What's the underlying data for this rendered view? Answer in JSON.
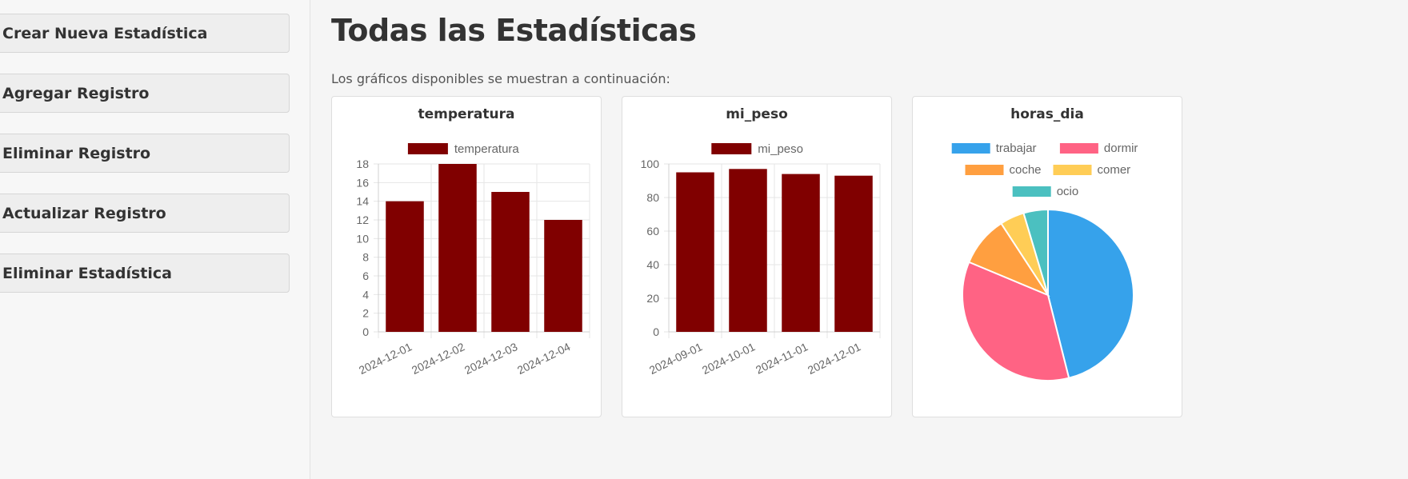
{
  "sidebar": {
    "buttons": [
      {
        "label": "Crear Nueva Estadística"
      },
      {
        "label": "Agregar Registro"
      },
      {
        "label": "Eliminar Registro"
      },
      {
        "label": "Actualizar Registro"
      },
      {
        "label": "Eliminar Estadística"
      }
    ]
  },
  "main": {
    "title": "Todas las Estadísticas",
    "subtitle": "Los gráficos disponibles se muestran a continuación:"
  },
  "chart_data": [
    {
      "type": "bar",
      "title": "temperatura",
      "categories": [
        "2024-12-01",
        "2024-12-02",
        "2024-12-03",
        "2024-12-04"
      ],
      "series": [
        {
          "name": "temperatura",
          "values": [
            14,
            18,
            15,
            12
          ],
          "color": "#800000"
        }
      ],
      "ylim": [
        0,
        18
      ],
      "yticks": [
        0,
        2,
        4,
        6,
        8,
        10,
        12,
        14,
        16,
        18
      ],
      "grid": true,
      "legend": "top"
    },
    {
      "type": "bar",
      "title": "mi_peso",
      "categories": [
        "2024-09-01",
        "2024-10-01",
        "2024-11-01",
        "2024-12-01"
      ],
      "series": [
        {
          "name": "mi_peso",
          "values": [
            95,
            97,
            94,
            93
          ],
          "color": "#800000"
        }
      ],
      "ylim": [
        0,
        100
      ],
      "yticks": [
        0,
        20,
        40,
        60,
        80,
        100
      ],
      "grid": true,
      "legend": "top"
    },
    {
      "type": "pie",
      "title": "horas_dia",
      "labels": [
        "trabajar",
        "dormir",
        "coche",
        "comer",
        "ocio"
      ],
      "values": [
        8.5,
        6.5,
        1.75,
        0.85,
        0.85
      ],
      "colors": [
        "#36a2eb",
        "#ff6384",
        "#ff9f40",
        "#ffcd56",
        "#4bc0c0"
      ],
      "legend": "top"
    }
  ]
}
